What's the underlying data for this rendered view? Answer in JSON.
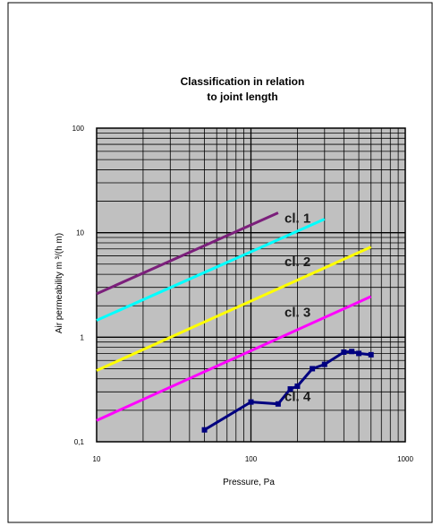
{
  "chart_data": {
    "type": "line",
    "title_lines": [
      "Classification in relation",
      "to joint length"
    ],
    "xlabel": "Pressure, Pa",
    "ylabel": "Air permeability m  ³/(h m)",
    "xscale": "log",
    "yscale": "log",
    "xlim": [
      10,
      1000
    ],
    "ylim": [
      0.1,
      100
    ],
    "x_ticks": [
      {
        "value": 10,
        "label": "10"
      },
      {
        "value": 100,
        "label": "100"
      },
      {
        "value": 1000,
        "label": "1000"
      }
    ],
    "y_ticks": [
      {
        "value": 0.1,
        "label": "0,1"
      },
      {
        "value": 1,
        "label": "1"
      },
      {
        "value": 10,
        "label": "10"
      },
      {
        "value": 100,
        "label": "100"
      }
    ],
    "grid": true,
    "plot_background": "#c0c0c0",
    "series": [
      {
        "color": "#7b1f7b",
        "x": [
          10,
          150
        ],
        "y": [
          2.6,
          15.5
        ]
      },
      {
        "color": "#00ffff",
        "x": [
          10,
          300
        ],
        "y": [
          1.45,
          13.5
        ]
      },
      {
        "color": "#ffff00",
        "x": [
          10,
          600
        ],
        "y": [
          0.48,
          7.3
        ]
      },
      {
        "color": "#ff00ff",
        "x": [
          10,
          600
        ],
        "y": [
          0.16,
          2.45
        ]
      },
      {
        "color": "#000080",
        "marker": "square",
        "x": [
          50,
          100,
          150,
          180,
          200,
          250,
          300,
          400,
          450,
          500,
          600
        ],
        "y": [
          0.13,
          0.24,
          0.23,
          0.32,
          0.34,
          0.5,
          0.55,
          0.72,
          0.73,
          0.7,
          0.68
        ]
      }
    ],
    "annotations": [
      {
        "text": "cl. 1",
        "x": 165,
        "y": 13.7
      },
      {
        "text": "cl. 2",
        "x": 165,
        "y": 5.3
      },
      {
        "text": "cl. 3",
        "x": 165,
        "y": 1.73
      },
      {
        "text": "cl. 4",
        "x": 165,
        "y": 0.27
      }
    ]
  }
}
